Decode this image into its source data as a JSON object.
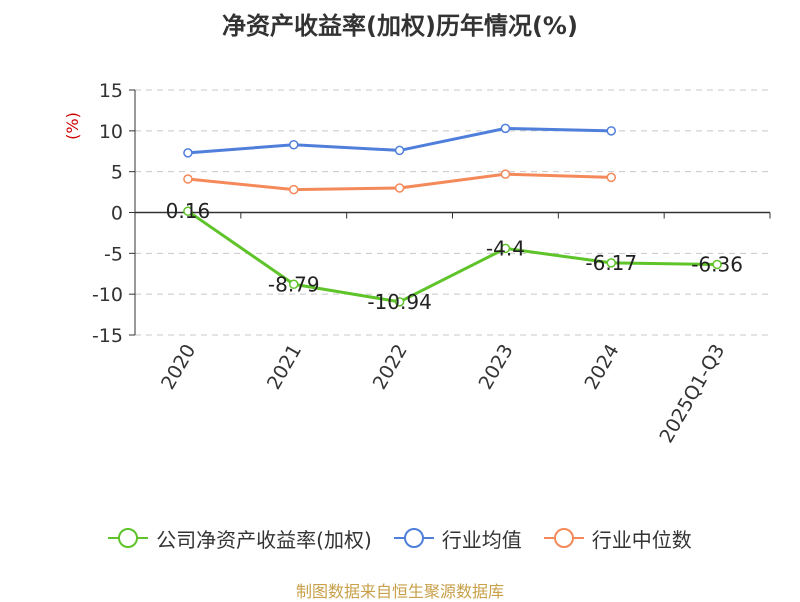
{
  "chart_data": {
    "type": "line",
    "title": "净资产收益率(加权)历年情况(%)",
    "ylabel": "(%)",
    "xlabel": "",
    "categories": [
      "2020",
      "2021",
      "2022",
      "2023",
      "2024",
      "2025Q1-Q3"
    ],
    "ylim": [
      -15,
      15
    ],
    "yticks": [
      15,
      10,
      5,
      0,
      -5,
      -10,
      -15
    ],
    "grid": true,
    "legend_position": "bottom",
    "series": [
      {
        "name": "公司净资产收益率(加权)",
        "color": "#5ec429",
        "values": [
          0.16,
          -8.79,
          -10.94,
          -4.4,
          -6.17,
          -6.36
        ],
        "labels": [
          "0.16",
          "-8.79",
          "-10.94",
          "-4.4",
          "-6.17",
          "-6.36"
        ]
      },
      {
        "name": "行业均值",
        "color": "#4f7fdb",
        "values": [
          7.3,
          8.3,
          7.6,
          10.3,
          10.0,
          null
        ]
      },
      {
        "name": "行业中位数",
        "color": "#f4895a",
        "values": [
          4.1,
          2.8,
          3.0,
          4.7,
          4.3,
          null
        ]
      }
    ]
  },
  "source_text": "制图数据来自恒生聚源数据库"
}
